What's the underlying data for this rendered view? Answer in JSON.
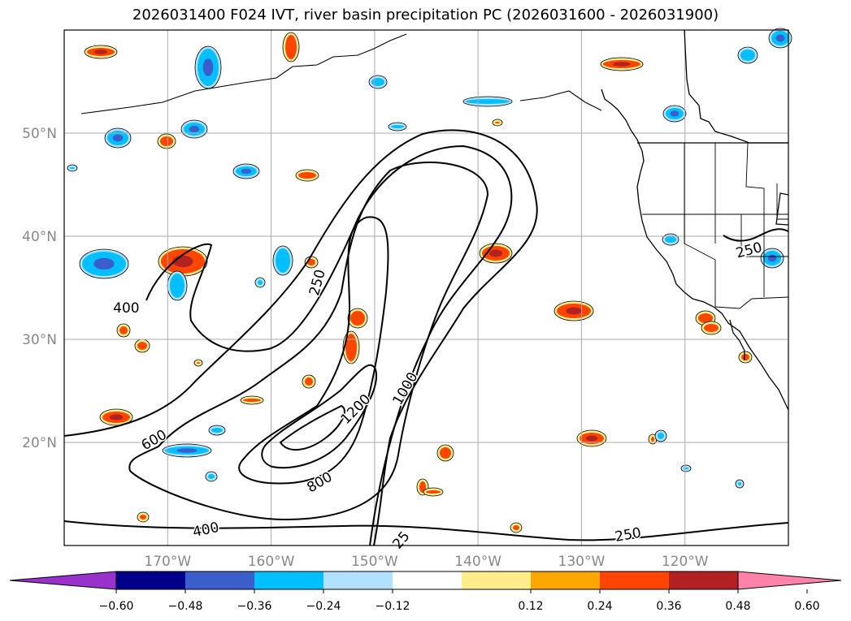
{
  "title": "2026031400 F024 IVT, river basin precipitation PC (2026031600 - 2026031900)",
  "map": {
    "lon_range": [
      -180,
      -110
    ],
    "lat_range": [
      10,
      60
    ],
    "lon_ticks": [
      {
        "value": -170,
        "label": "170°W"
      },
      {
        "value": -160,
        "label": "160°W"
      },
      {
        "value": -150,
        "label": "150°W"
      },
      {
        "value": -140,
        "label": "140°W"
      },
      {
        "value": -130,
        "label": "130°W"
      },
      {
        "value": -120,
        "label": "120°W"
      }
    ],
    "lat_ticks": [
      {
        "value": 20,
        "label": "20°N"
      },
      {
        "value": 30,
        "label": "30°N"
      },
      {
        "value": 40,
        "label": "40°N"
      },
      {
        "value": 50,
        "label": "50°N"
      }
    ],
    "gridlines": true,
    "tick_label_color": "#888888"
  },
  "ivt_contour_labels": [
    {
      "text": "400",
      "lon": -174,
      "lat": 33,
      "rot": 0
    },
    {
      "text": "250",
      "lon": -155.5,
      "lat": 35.5,
      "rot": -75
    },
    {
      "text": "600",
      "lon": -171.3,
      "lat": 20.2,
      "rot": -30
    },
    {
      "text": "1000",
      "lon": -147,
      "lat": 25.2,
      "rot": -60
    },
    {
      "text": "1200",
      "lon": -151.8,
      "lat": 23.2,
      "rot": -45
    },
    {
      "text": "800",
      "lon": -155.3,
      "lat": 16.1,
      "rot": -30
    },
    {
      "text": "400",
      "lon": -166.3,
      "lat": 11.5,
      "rot": -12
    },
    {
      "text": "25",
      "lon": -147.4,
      "lat": 10.5,
      "rot": -50
    },
    {
      "text": "250",
      "lon": -125.5,
      "lat": 11,
      "rot": -10
    },
    {
      "text": "250",
      "lon": -113.8,
      "lat": 38.6,
      "rot": -15
    }
  ],
  "colorbar": {
    "colors": [
      "#9932cc",
      "#00008b",
      "#3a5fcd",
      "#00bfff",
      "#b0e2ff",
      "#ffffff",
      "#ffec8b",
      "#ffa500",
      "#ff4500",
      "#b22222",
      "#ff82ab"
    ],
    "ticks": [
      "−0.60",
      "−0.48",
      "−0.36",
      "−0.24",
      "−0.12",
      "0.12",
      "0.24",
      "0.36",
      "0.48",
      "0.60"
    ]
  }
}
